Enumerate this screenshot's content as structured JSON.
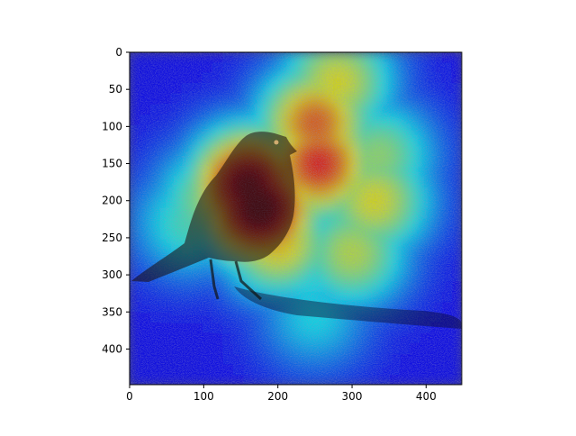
{
  "chart_data": {
    "type": "heatmap",
    "title": "",
    "xlabel": "",
    "ylabel": "",
    "image_content": "Attention / saliency heatmap (jet colormap) overlaid on a photograph of a dark bird standing on gravel",
    "colormap": "jet",
    "xlim": [
      0,
      448
    ],
    "ylim": [
      448,
      0
    ],
    "x_ticks": [
      0,
      100,
      200,
      300,
      400
    ],
    "y_ticks": [
      0,
      50,
      100,
      150,
      200,
      250,
      300,
      350,
      400
    ],
    "hotspots": [
      {
        "x": 175,
        "y": 210,
        "level": 1.0
      },
      {
        "x": 160,
        "y": 180,
        "level": 0.95
      },
      {
        "x": 255,
        "y": 150,
        "level": 0.8
      },
      {
        "x": 250,
        "y": 95,
        "level": 0.72
      },
      {
        "x": 280,
        "y": 40,
        "level": 0.55
      },
      {
        "x": 200,
        "y": 255,
        "level": 0.6
      },
      {
        "x": 110,
        "y": 200,
        "level": 0.45
      },
      {
        "x": 330,
        "y": 200,
        "level": 0.55
      },
      {
        "x": 335,
        "y": 140,
        "level": 0.45
      },
      {
        "x": 300,
        "y": 270,
        "level": 0.5
      },
      {
        "x": 240,
        "y": 300,
        "level": 0.3
      },
      {
        "x": 250,
        "y": 355,
        "level": 0.28
      },
      {
        "x": 80,
        "y": 230,
        "level": 0.35
      }
    ],
    "colors": {
      "background": "#ffffff",
      "low": "#00007f",
      "mid": "#7fff7f",
      "high": "#7f0000",
      "gravel_base": "#3e3e7a"
    }
  }
}
